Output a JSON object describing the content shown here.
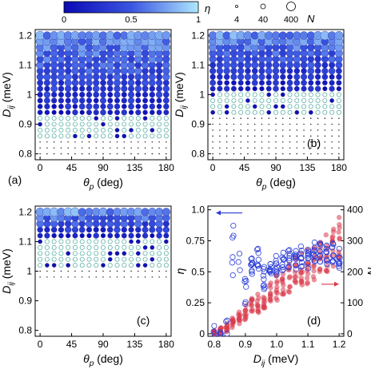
{
  "colorbar": {
    "label": "η",
    "ticks": [
      "0",
      "0.5",
      "1"
    ],
    "colors": [
      "#0a0ab4",
      "#3a55e0",
      "#aee8ff"
    ]
  },
  "size_legend": {
    "label": "N",
    "entries": [
      "4",
      "40",
      "400"
    ]
  },
  "chart_data": [
    {
      "type": "scatter",
      "panel": "(a)",
      "xlabel": "θ_p (deg)",
      "ylabel": "D_ij (meV)",
      "xticks": [
        "0",
        "45",
        "90",
        "135",
        "180"
      ],
      "yticks": [
        "0.8",
        "0.9",
        "1",
        "1.1",
        "1.2"
      ],
      "xlim": [
        -7,
        187
      ],
      "ylim": [
        0.78,
        1.22
      ],
      "grid_theta": [
        0,
        10,
        20,
        30,
        40,
        50,
        60,
        70,
        80,
        90,
        100,
        110,
        120,
        130,
        140,
        150,
        160,
        170,
        180
      ],
      "grid_D": [
        0.8,
        0.82,
        0.84,
        0.86,
        0.88,
        0.9,
        0.92,
        0.94,
        0.96,
        0.98,
        1.0,
        1.02,
        1.04,
        1.06,
        1.08,
        1.1,
        1.12,
        1.14,
        1.16,
        1.18,
        1.2
      ],
      "regimes": {
        "ordered_above": 0.94,
        "transition_low": 0.86
      }
    },
    {
      "type": "scatter",
      "panel": "(b)",
      "xlabel": "θ_p (deg)",
      "ylabel": "D_ij (meV)",
      "xticks": [
        "0",
        "45",
        "90",
        "135",
        "180"
      ],
      "yticks": [
        "0.8",
        "0.9",
        "1",
        "1.1",
        "1.2"
      ],
      "xlim": [
        -7,
        187
      ],
      "ylim": [
        0.78,
        1.22
      ],
      "grid_theta": [
        0,
        10,
        20,
        30,
        40,
        50,
        60,
        70,
        80,
        90,
        100,
        110,
        120,
        130,
        140,
        150,
        160,
        170,
        180
      ],
      "grid_D": [
        0.8,
        0.82,
        0.84,
        0.86,
        0.88,
        0.9,
        0.92,
        0.94,
        0.96,
        0.98,
        1.0,
        1.02,
        1.04,
        1.06,
        1.08,
        1.1,
        1.12,
        1.14,
        1.16,
        1.18,
        1.2
      ],
      "regimes": {
        "ordered_above": 1.02,
        "transition_low": 0.94
      }
    },
    {
      "type": "scatter",
      "panel": "(c)",
      "xlabel": "θ_p (deg)",
      "ylabel": "D_ij (meV)",
      "xticks": [
        "0",
        "45",
        "90",
        "135",
        "180"
      ],
      "yticks": [
        "0.8",
        "0.9",
        "1",
        "1.1",
        "1.2"
      ],
      "xlim": [
        -7,
        187
      ],
      "ylim": [
        0.78,
        1.22
      ],
      "grid_theta": [
        0,
        10,
        20,
        30,
        40,
        50,
        60,
        70,
        80,
        90,
        100,
        110,
        120,
        130,
        140,
        150,
        160,
        170,
        180
      ],
      "grid_D": [
        0.98,
        1.0,
        1.02,
        1.04,
        1.06,
        1.08,
        1.1,
        1.12,
        1.14,
        1.16,
        1.18,
        1.2
      ],
      "regimes": {
        "ordered_above": 1.12,
        "transition_low": 1.02
      }
    },
    {
      "type": "scatter",
      "panel": "(d)",
      "xlabel": "D_ij (meV)",
      "ylabel_left": "η",
      "ylabel_right": "N",
      "xticks": [
        "0.8",
        "0.9",
        "1.0",
        "1.1",
        "1.2"
      ],
      "yticks_left": [
        "0",
        "0.25",
        "0.5",
        "0.75",
        "1.0"
      ],
      "yticks_right": [
        "0",
        "100",
        "200",
        "300",
        "400"
      ],
      "xlim": [
        0.78,
        1.215
      ],
      "ylim_left": [
        -0.02,
        1.03
      ],
      "ylim_right": [
        -8,
        412
      ],
      "series": [
        {
          "axis": "left",
          "color": "#2a3cd6",
          "marker": "open-circle",
          "x": [
            0.8,
            0.82,
            0.84,
            0.86,
            0.86,
            0.88,
            0.9,
            0.9,
            0.92,
            0.94,
            0.96,
            0.98,
            1.0,
            1.02,
            1.04,
            1.06,
            1.08,
            1.1,
            1.12,
            1.14,
            1.16,
            1.18,
            1.2
          ],
          "y": [
            0,
            0,
            0.02,
            0.85,
            0.55,
            0.6,
            0.5,
            0.3,
            0.55,
            0.6,
            0.45,
            0.55,
            0.55,
            0.58,
            0.6,
            0.58,
            0.62,
            0.6,
            0.65,
            0.65,
            0.65,
            0.65,
            0.62
          ]
        },
        {
          "axis": "right",
          "color": "#d83a4a",
          "marker": "filled-circle",
          "x": [
            0.8,
            0.82,
            0.84,
            0.86,
            0.88,
            0.9,
            0.92,
            0.94,
            0.96,
            0.98,
            1.0,
            1.02,
            1.04,
            1.06,
            1.08,
            1.1,
            1.12,
            1.14,
            1.16,
            1.18,
            1.2
          ],
          "y": [
            2,
            8,
            20,
            35,
            55,
            70,
            85,
            100,
            115,
            130,
            150,
            165,
            180,
            195,
            205,
            215,
            225,
            240,
            255,
            270,
            300
          ]
        }
      ]
    }
  ]
}
